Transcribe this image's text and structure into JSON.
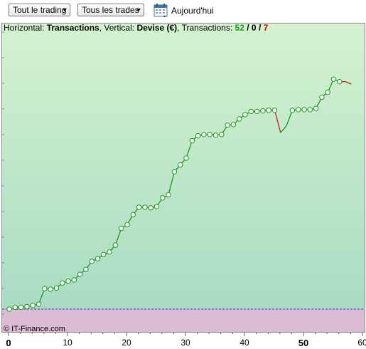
{
  "toolbar": {
    "filter_trading": "Tout le trading",
    "filter_trades": "Tous les trades",
    "date_label": "Aujourd'hui"
  },
  "info": {
    "horizontal_label": "Horizontal:",
    "horizontal_value": "Transactions",
    "vertical_label": "Vertical:",
    "vertical_value": "Devise (€)",
    "transactions_label": "Transactions:",
    "count_total": "52",
    "count_zero": "0",
    "count_loss": "7",
    "sep1": "/",
    "sep2": "/"
  },
  "copyright": "© IT-Finance.com",
  "colors": {
    "profit_bg_top": "#d4f2cf",
    "profit_bg_bottom": "#a9dcc4",
    "loss_bg": "#dcbcd4",
    "line_up": "#1a9a1a",
    "line_down": "#c81e1e",
    "baseline": "#3333cc"
  },
  "chart_data": {
    "type": "line",
    "xlabel": "Transactions",
    "ylabel": "Devise (€)",
    "xlim": [
      0,
      60
    ],
    "ylim": [
      -15,
      455
    ],
    "x_ticks": [
      0,
      10,
      20,
      30,
      40,
      50,
      60
    ],
    "x_ticks_bold": [
      0,
      50
    ],
    "grid": false,
    "series": [
      {
        "values": [
          [
            0,
            0
          ],
          [
            1,
            3
          ],
          [
            2,
            3
          ],
          [
            3,
            4
          ],
          [
            4,
            6
          ],
          [
            5,
            8
          ],
          [
            6,
            33
          ],
          [
            7,
            32
          ],
          [
            8,
            34
          ],
          [
            9,
            42
          ],
          [
            10,
            45
          ],
          [
            11,
            47
          ],
          [
            12,
            56
          ],
          [
            13,
            64
          ],
          [
            14,
            77
          ],
          [
            15,
            81
          ],
          [
            16,
            88
          ],
          [
            17,
            92
          ],
          [
            18,
            103
          ],
          [
            19,
            130
          ],
          [
            20,
            136
          ],
          [
            21,
            152
          ],
          [
            22,
            164
          ],
          [
            23,
            164
          ],
          [
            24,
            163
          ],
          [
            25,
            165
          ],
          [
            26,
            179
          ],
          [
            27,
            184
          ],
          [
            28,
            221
          ],
          [
            29,
            232
          ],
          [
            30,
            243
          ],
          [
            31,
            271
          ],
          [
            32,
            279
          ],
          [
            33,
            281
          ],
          [
            34,
            281
          ],
          [
            35,
            280
          ],
          [
            36,
            281
          ],
          [
            37,
            296
          ],
          [
            38,
            297
          ],
          [
            39,
            306
          ],
          [
            40,
            313
          ],
          [
            41,
            318
          ],
          [
            42,
            318
          ],
          [
            43,
            319
          ],
          [
            44,
            320
          ],
          [
            45,
            320
          ],
          [
            46,
            284
          ],
          [
            47,
            295
          ],
          [
            48,
            320
          ],
          [
            49,
            321
          ],
          [
            50,
            321
          ],
          [
            51,
            321
          ],
          [
            52,
            323
          ],
          [
            53,
            341
          ],
          [
            54,
            349
          ],
          [
            55,
            370
          ],
          [
            56,
            366
          ],
          [
            57,
            366
          ],
          [
            58,
            362
          ]
        ]
      }
    ],
    "down_trades_x": [
      46,
      57,
      58
    ]
  }
}
